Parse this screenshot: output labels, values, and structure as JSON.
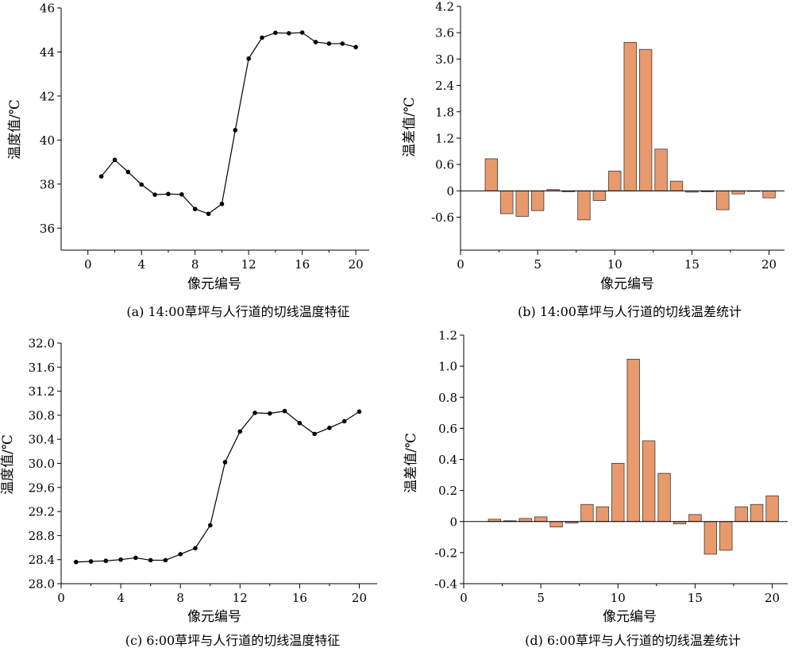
{
  "chart_data": [
    {
      "id": "a",
      "type": "line",
      "caption": "(a) 14:00草坪与人行道的切线温度特征",
      "xlabel": "像元编号",
      "ylabel": "温度值/℃",
      "xlim": [
        -2,
        21
      ],
      "ylim": [
        35,
        46
      ],
      "xticks": [
        0,
        4,
        8,
        12,
        16,
        20
      ],
      "yticks": [
        36,
        38,
        40,
        42,
        44,
        46
      ],
      "ytick_labels": [
        "36",
        "38",
        "40",
        "42",
        "44",
        "46"
      ],
      "x": [
        1,
        2,
        3,
        4,
        5,
        6,
        7,
        8,
        9,
        10,
        11,
        12,
        13,
        14,
        15,
        16,
        17,
        18,
        19,
        20
      ],
      "values": [
        38.35,
        39.1,
        38.55,
        37.98,
        37.52,
        37.55,
        37.53,
        36.87,
        36.65,
        37.1,
        40.45,
        43.7,
        44.65,
        44.87,
        44.85,
        44.88,
        44.45,
        44.38,
        44.38,
        44.22
      ],
      "color": "#000000"
    },
    {
      "id": "b",
      "type": "bar",
      "caption": "(b) 14:00草坪与人行道的切线温差统计",
      "xlabel": "像元编号",
      "ylabel": "温差值/℃",
      "xlim": [
        0,
        21
      ],
      "ylim": [
        -1.35,
        4.2
      ],
      "xticks": [
        0,
        5,
        10,
        15,
        20
      ],
      "yticks": [
        -0.6,
        0,
        0.6,
        1.2,
        1.8,
        2.4,
        3.0,
        3.6,
        4.2
      ],
      "ytick_labels": [
        "-0.6",
        "0",
        "0.6",
        "1.2",
        "1.8",
        "2.4",
        "3.0",
        "3.6",
        "4.2"
      ],
      "x": [
        2,
        3,
        4,
        5,
        6,
        7,
        8,
        9,
        10,
        11,
        12,
        13,
        14,
        15,
        16,
        17,
        18,
        19,
        20
      ],
      "values": [
        0.73,
        -0.52,
        -0.58,
        -0.45,
        0.03,
        -0.02,
        -0.66,
        -0.22,
        0.45,
        3.38,
        3.22,
        0.95,
        0.22,
        -0.03,
        -0.02,
        -0.43,
        -0.07,
        0.0,
        -0.16
      ],
      "color": "#e99a6c"
    },
    {
      "id": "c",
      "type": "line",
      "caption": "(c) 6:00草坪与人行道的切线温度特征",
      "xlabel": "像元编号",
      "ylabel": "温度值/℃",
      "xlim": [
        0,
        21.2
      ],
      "ylim": [
        28,
        32
      ],
      "xticks": [
        0,
        4,
        8,
        12,
        16,
        20
      ],
      "yticks": [
        28.0,
        28.4,
        28.8,
        29.2,
        29.6,
        30.0,
        30.4,
        30.8,
        31.2,
        31.6,
        32.0
      ],
      "ytick_labels": [
        "28.0",
        "28.4",
        "28.8",
        "29.2",
        "29.6",
        "30.0",
        "30.4",
        "30.8",
        "31.2",
        "31.6",
        "32.0"
      ],
      "x": [
        1,
        2,
        3,
        4,
        5,
        6,
        7,
        8,
        9,
        10,
        11,
        12,
        13,
        14,
        15,
        16,
        17,
        18,
        19,
        20
      ],
      "values": [
        28.36,
        28.37,
        28.38,
        28.4,
        28.43,
        28.39,
        28.39,
        28.49,
        28.59,
        28.97,
        30.02,
        30.53,
        30.84,
        30.83,
        30.87,
        30.67,
        30.49,
        30.59,
        30.7,
        30.86
      ],
      "color": "#000000"
    },
    {
      "id": "d",
      "type": "bar",
      "caption": "(d) 6:00草坪与人行道的切线温差统计",
      "xlabel": "像元编号",
      "ylabel": "温差值/℃",
      "xlim": [
        0,
        21
      ],
      "ylim": [
        -0.4,
        1.2
      ],
      "xticks": [
        0,
        5,
        10,
        15,
        20
      ],
      "yticks": [
        -0.4,
        -0.2,
        0,
        0.2,
        0.4,
        0.6,
        0.8,
        1.0,
        1.2
      ],
      "ytick_labels": [
        "-0.4",
        "-0.2",
        "0",
        "0.2",
        "0.4",
        "0.6",
        "0.8",
        "1.0",
        "1.2"
      ],
      "x": [
        2,
        3,
        4,
        5,
        6,
        7,
        8,
        9,
        10,
        11,
        12,
        13,
        14,
        15,
        16,
        17,
        18,
        19,
        20
      ],
      "values": [
        0.015,
        0.005,
        0.02,
        0.03,
        -0.035,
        -0.01,
        0.11,
        0.095,
        0.375,
        1.045,
        0.52,
        0.31,
        -0.015,
        0.045,
        -0.21,
        -0.185,
        0.095,
        0.11,
        0.165
      ],
      "color": "#e99a6c"
    }
  ]
}
